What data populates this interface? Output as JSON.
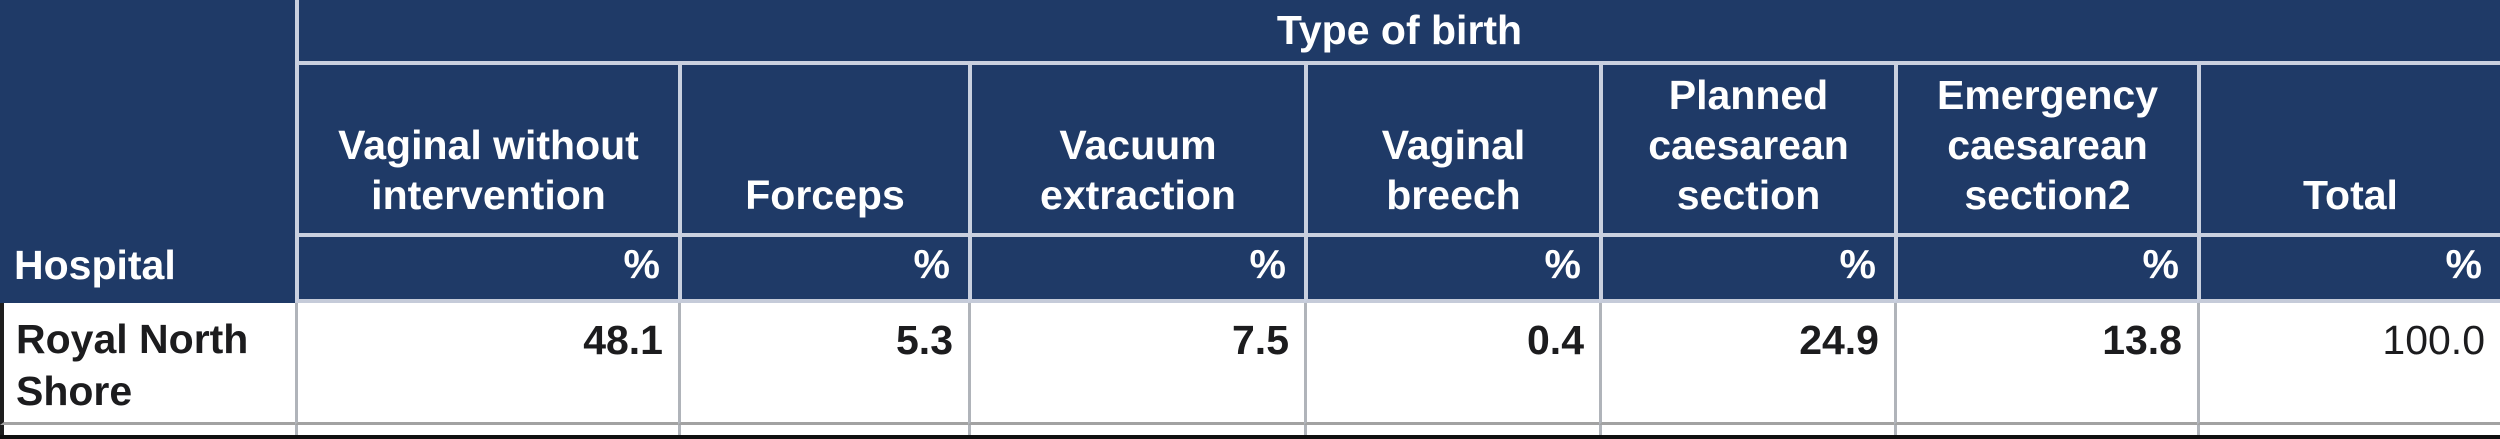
{
  "table": {
    "span_header": "Type of birth",
    "row_header_label": "Hospital",
    "columns": [
      {
        "label": "Vaginal without intervention",
        "unit": "%"
      },
      {
        "label": "Forceps",
        "unit": "%"
      },
      {
        "label": "Vacuum extraction",
        "unit": "%"
      },
      {
        "label": "Vaginal breech",
        "unit": "%"
      },
      {
        "label": "Planned caesarean section",
        "unit": "%"
      },
      {
        "label": "Emergency caesarean section2",
        "unit": "%"
      },
      {
        "label": "Total",
        "unit": "%"
      }
    ],
    "rows": [
      {
        "hospital": "Royal North Shore",
        "values": [
          "48.1",
          "5.3",
          "7.5",
          "0.4",
          "24.9",
          "13.8",
          "100.0"
        ]
      }
    ],
    "footnote_marker": "2",
    "colors": {
      "header_background": "#1f3a67",
      "header_text": "#ffffff",
      "header_gridline": "#c9d0df",
      "body_text": "#1c1c1e",
      "body_gridline_vertical": "#b0b4ba",
      "body_gridline_horizontal": "#a2a2a2",
      "bottom_bar": "#0f0f0f"
    }
  }
}
